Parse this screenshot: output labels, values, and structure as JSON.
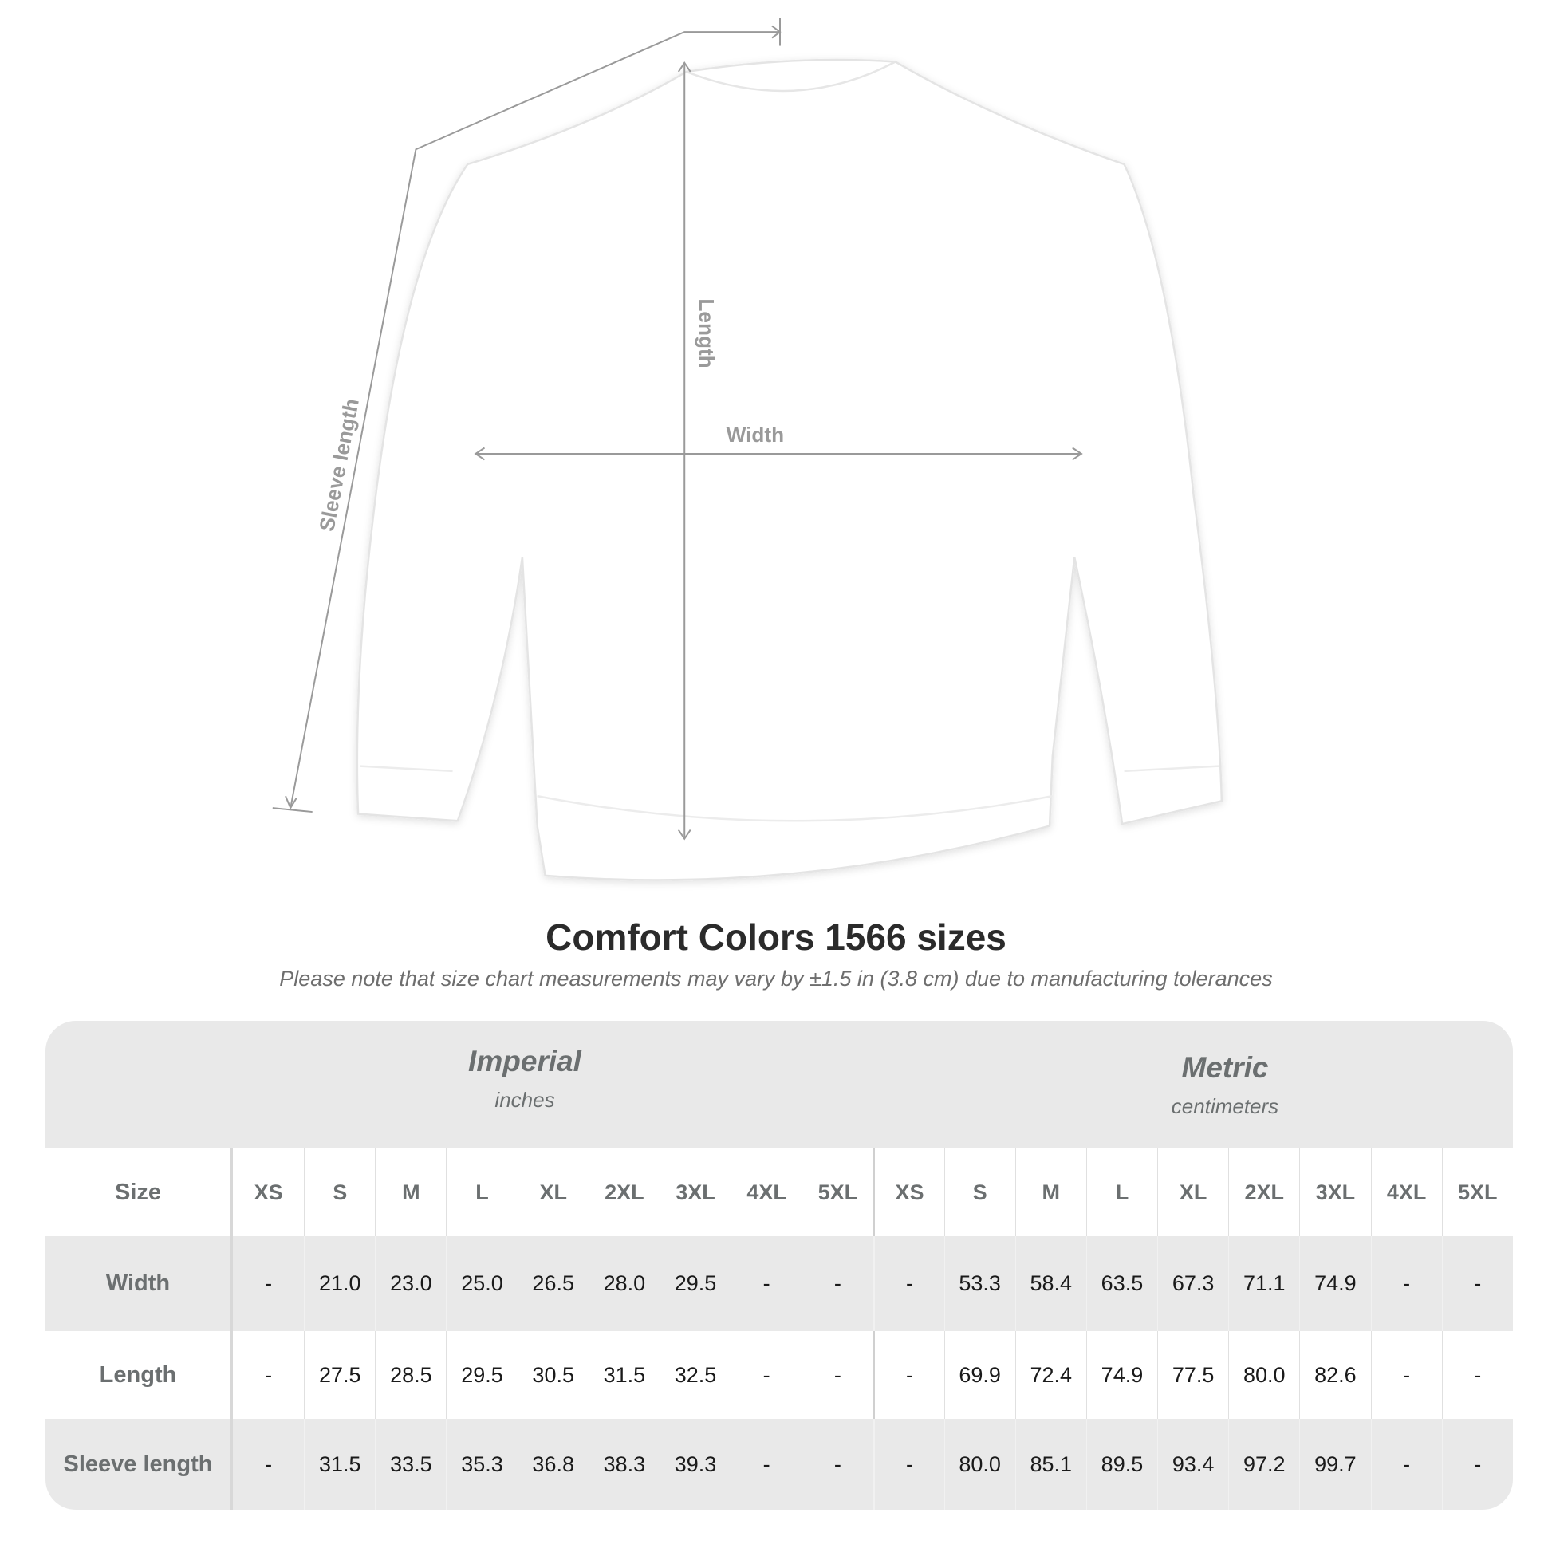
{
  "diagram": {
    "labels": {
      "sleeve": "Sleeve length",
      "length": "Length",
      "width": "Width"
    },
    "garment_color": "#ffffff",
    "line_color": "#9a9a9a"
  },
  "title": "Comfort Colors 1566 sizes",
  "note": "Please note that size chart measurements may vary by ±1.5 in (3.8 cm) due to manufacturing tolerances",
  "table": {
    "imperial": {
      "name": "Imperial",
      "unit": "inches"
    },
    "metric": {
      "name": "Metric",
      "unit": "centimeters"
    },
    "size_label": "Size",
    "sizes": [
      "XS",
      "S",
      "M",
      "L",
      "XL",
      "2XL",
      "3XL",
      "4XL",
      "5XL"
    ],
    "rows": [
      {
        "label": "Width",
        "imperial": [
          "-",
          "21.0",
          "23.0",
          "25.0",
          "26.5",
          "28.0",
          "29.5",
          "-",
          "-"
        ],
        "metric": [
          "-",
          "53.3",
          "58.4",
          "63.5",
          "67.3",
          "71.1",
          "74.9",
          "-",
          "-"
        ]
      },
      {
        "label": "Length",
        "imperial": [
          "-",
          "27.5",
          "28.5",
          "29.5",
          "30.5",
          "31.5",
          "32.5",
          "-",
          "-"
        ],
        "metric": [
          "-",
          "69.9",
          "72.4",
          "74.9",
          "77.5",
          "80.0",
          "82.6",
          "-",
          "-"
        ]
      },
      {
        "label": "Sleeve length",
        "imperial": [
          "-",
          "31.5",
          "33.5",
          "35.3",
          "36.8",
          "38.3",
          "39.3",
          "-",
          "-"
        ],
        "metric": [
          "-",
          "80.0",
          "85.1",
          "89.5",
          "93.4",
          "97.2",
          "99.7",
          "-",
          "-"
        ]
      }
    ]
  }
}
